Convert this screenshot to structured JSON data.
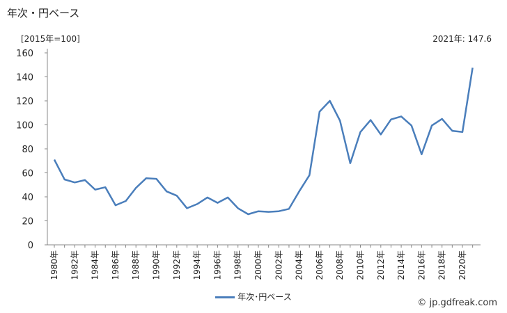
{
  "title": "年次・円ベース",
  "unit_label": "[2015年=100]",
  "annotation": "2021年: 147.6",
  "credit": "© jp.gdfreak.com",
  "chart_data": {
    "type": "line",
    "x": [
      1980,
      1981,
      1982,
      1983,
      1984,
      1985,
      1986,
      1987,
      1988,
      1989,
      1990,
      1991,
      1992,
      1993,
      1994,
      1995,
      1996,
      1997,
      1998,
      1999,
      2000,
      2001,
      2002,
      2003,
      2004,
      2005,
      2006,
      2007,
      2008,
      2009,
      2010,
      2011,
      2012,
      2013,
      2014,
      2015,
      2016,
      2017,
      2018,
      2019,
      2020,
      2021
    ],
    "x_tick_labels": [
      "1980年",
      "1982年",
      "1984年",
      "1986年",
      "1988年",
      "1990年",
      "1992年",
      "1994年",
      "1996年",
      "1998年",
      "2000年",
      "2002年",
      "2004年",
      "2006年",
      "2008年",
      "2010年",
      "2012年",
      "2014年",
      "2016年",
      "2018年",
      "2020年"
    ],
    "series": [
      {
        "name": "年次･円ベース",
        "color": "#4a7ebb",
        "values": [
          71,
          54.5,
          52,
          54,
          46,
          48,
          33,
          36.5,
          47.5,
          55.5,
          55,
          44.5,
          41,
          30.5,
          34,
          39.5,
          35,
          39.5,
          30.5,
          25.5,
          28,
          27.5,
          28,
          30,
          44.5,
          58,
          111,
          120,
          103.5,
          68,
          94,
          104,
          92,
          104.5,
          107,
          99.5,
          75.5,
          99.5,
          105,
          95,
          94,
          147.6
        ]
      }
    ],
    "y_ticks": [
      0,
      20,
      40,
      60,
      80,
      100,
      120,
      140,
      160
    ],
    "ylim": [
      0,
      160
    ],
    "legend_position": "bottom-center",
    "grid": false
  }
}
